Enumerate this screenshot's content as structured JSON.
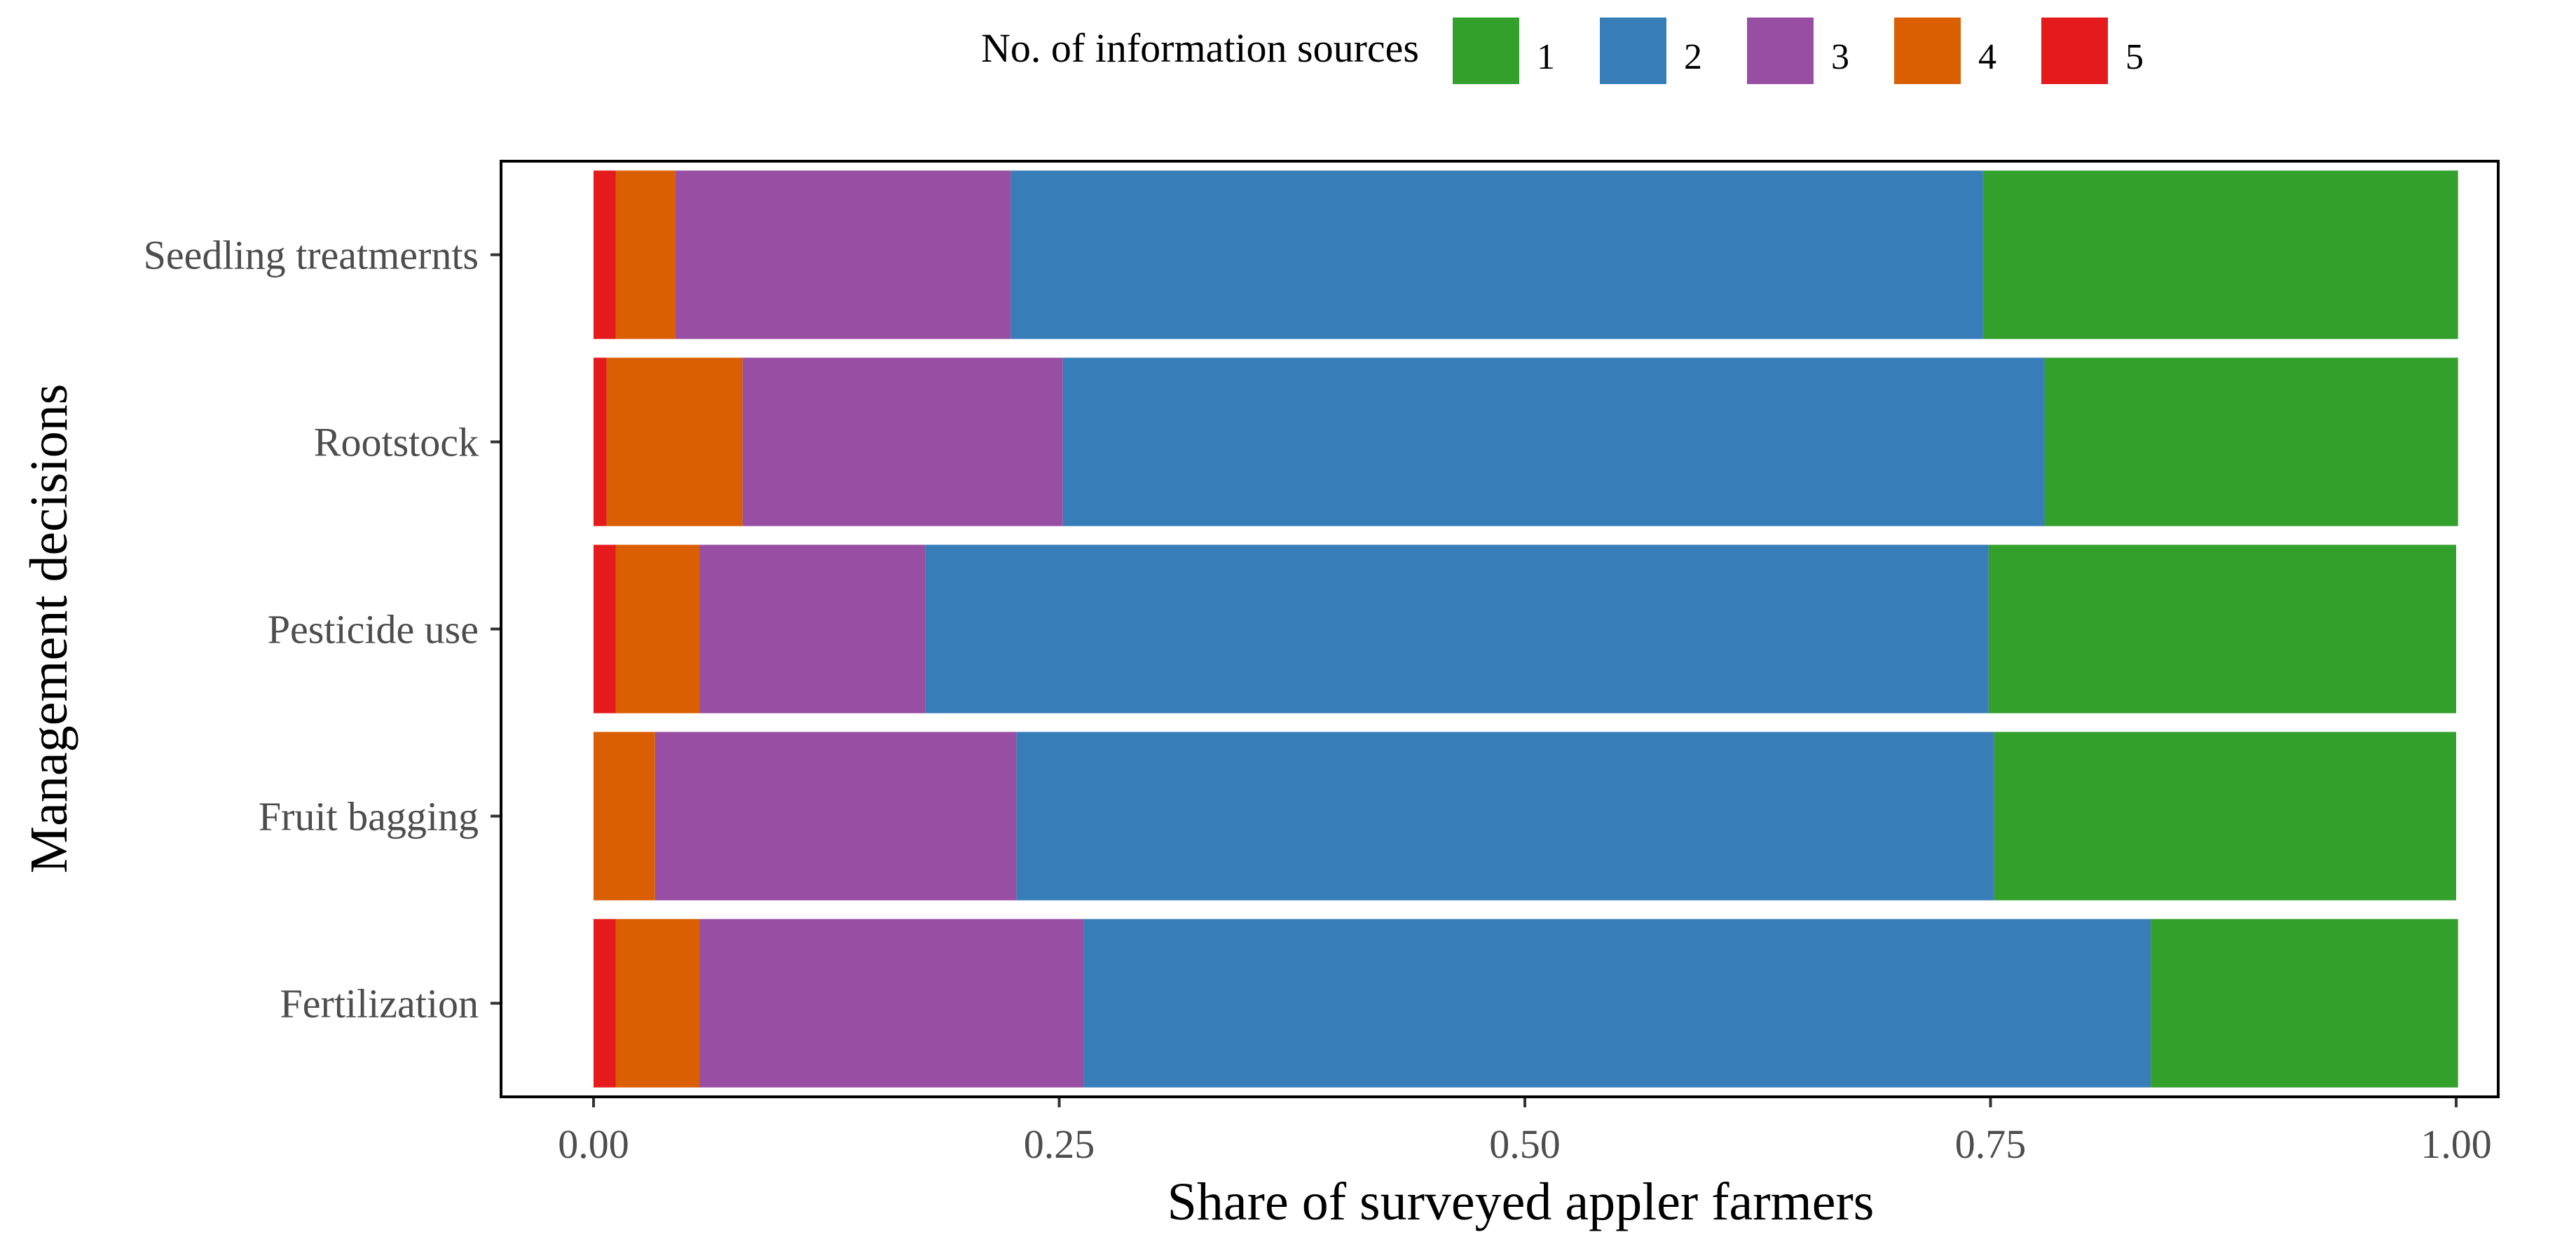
{
  "chart_data": {
    "type": "bar",
    "orientation": "horizontal",
    "stacked": true,
    "categories": [
      "Seedling treatmernts",
      "Rootstock",
      "Pesticide use",
      "Fruit bagging",
      "Fertilization"
    ],
    "series": [
      {
        "name": "1",
        "color": "#33A02C",
        "values": [
          0.255,
          0.222,
          0.251,
          0.248,
          0.165
        ]
      },
      {
        "name": "2",
        "color": "#377EB8",
        "values": [
          0.522,
          0.527,
          0.571,
          0.525,
          0.573
        ]
      },
      {
        "name": "3",
        "color": "#984EA3",
        "values": [
          0.18,
          0.172,
          0.121,
          0.194,
          0.206
        ]
      },
      {
        "name": "4",
        "color": "#D95F02",
        "values": [
          0.032,
          0.073,
          0.045,
          0.033,
          0.045
        ]
      },
      {
        "name": "5",
        "color": "#E41A1C",
        "values": [
          0.012,
          0.007,
          0.012,
          0,
          0.012
        ]
      }
    ],
    "xlabel": "Share of surveyed appler farmers",
    "ylabel": "Management decisions",
    "xlim": [
      0,
      1
    ],
    "xticks": [
      "0.00",
      "0.25",
      "0.50",
      "0.75",
      "1.00"
    ],
    "legend": {
      "title": "No. of information sources",
      "position": "top"
    },
    "grid": false
  }
}
